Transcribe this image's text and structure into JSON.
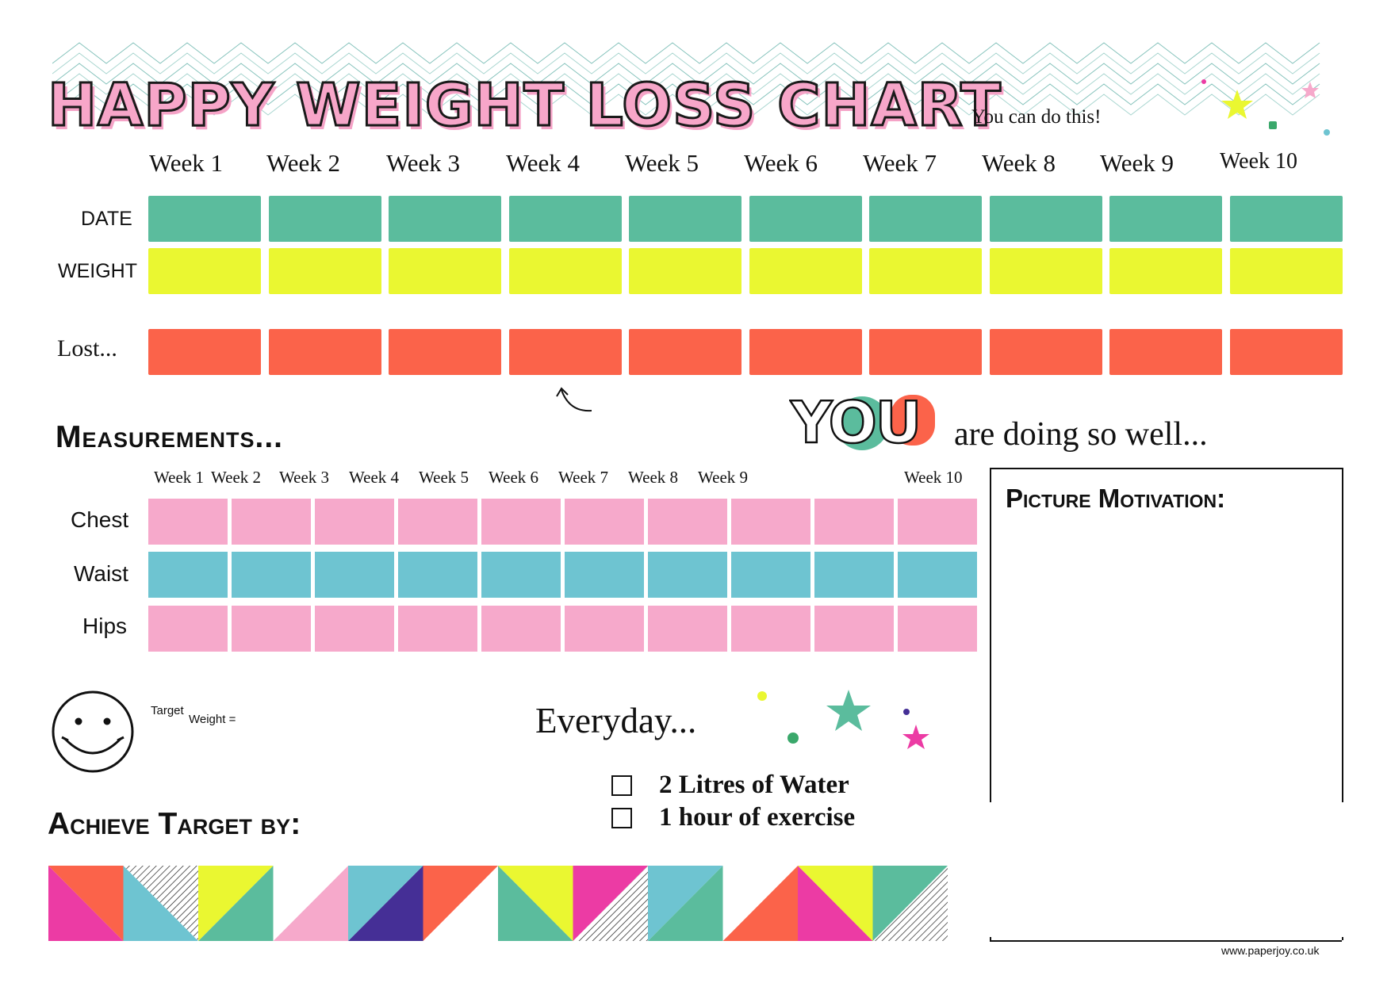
{
  "header": {
    "title": "HAPPY WEIGHT LOSS CHART",
    "tagline": "You can do this!"
  },
  "weekly": {
    "weeks": [
      "Week 1",
      "Week 2",
      "Week 3",
      "Week 4",
      "Week 5",
      "Week 6",
      "Week 7",
      "Week 8",
      "Week 9",
      "Week 10"
    ],
    "rows": [
      "DATE",
      "WEIGHT",
      "Lost..."
    ]
  },
  "measurements": {
    "title": "Measurements...",
    "weeks": [
      "Week 1",
      "Week 2",
      "Week 3",
      "Week 4",
      "Week 5",
      "Week 6",
      "Week 7",
      "Week 8",
      "Week 9",
      "Week 10"
    ],
    "rows": [
      "Chest",
      "Waist",
      "Hips"
    ]
  },
  "motivation": {
    "you": "YOU",
    "doing_well": "are doing so well...",
    "picture_title": "Picture Motivation:"
  },
  "target": {
    "target_word": "Target",
    "weight_word": "Weight =",
    "achieve_by": "Achieve Target by:"
  },
  "everyday": {
    "heading": "Everyday...",
    "tasks": [
      "2  Litres of Water",
      "1  hour of exercise"
    ]
  },
  "footer": {
    "url": "www.paperjoy.co.uk"
  },
  "colors": {
    "date": "#5bbc9d",
    "weight": "#eaf731",
    "lost": "#fb634a",
    "pink": "#f6a9cb",
    "teal": "#6ec4d1",
    "purple": "#452f96",
    "magenta": "#ec3ba4"
  }
}
